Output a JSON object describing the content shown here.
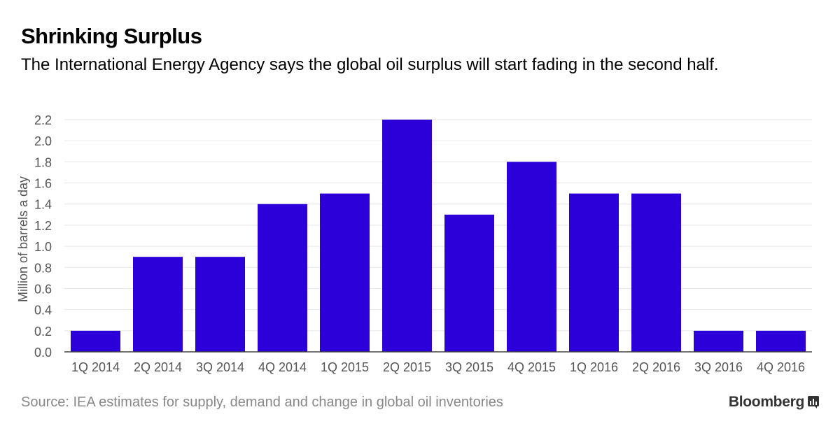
{
  "header": {
    "title": "Shrinking Surplus",
    "subtitle": "The International Energy Agency says the global oil surplus will start fading in the second half."
  },
  "footer": {
    "source": "Source: IEA estimates for supply, demand and change in global oil inventories",
    "brand": "Bloomberg"
  },
  "colors": {
    "bar": "#2b00d9",
    "grid": "#e6e6e6",
    "axis": "#444444",
    "tick_text": "#555555"
  },
  "chart_data": {
    "type": "bar",
    "title": "Shrinking Surplus",
    "subtitle": "The International Energy Agency says the global oil surplus will start fading in the second half.",
    "xlabel": "",
    "ylabel": "Million of barrels a day",
    "categories": [
      "1Q 2014",
      "2Q 2014",
      "3Q 2014",
      "4Q 2014",
      "1Q 2015",
      "2Q 2015",
      "3Q 2015",
      "4Q 2015",
      "1Q 2016",
      "2Q 2016",
      "3Q 2016",
      "4Q 2016"
    ],
    "values": [
      0.2,
      0.9,
      0.9,
      1.4,
      1.5,
      2.2,
      1.3,
      1.8,
      1.5,
      1.5,
      0.2,
      0.2
    ],
    "ylim": [
      0,
      2.2
    ],
    "yticks": [
      "0.0",
      "0.2",
      "0.4",
      "0.6",
      "0.8",
      "1.0",
      "1.2",
      "1.4",
      "1.6",
      "1.8",
      "2.0",
      "2.2"
    ],
    "grid": true,
    "legend": "none"
  }
}
